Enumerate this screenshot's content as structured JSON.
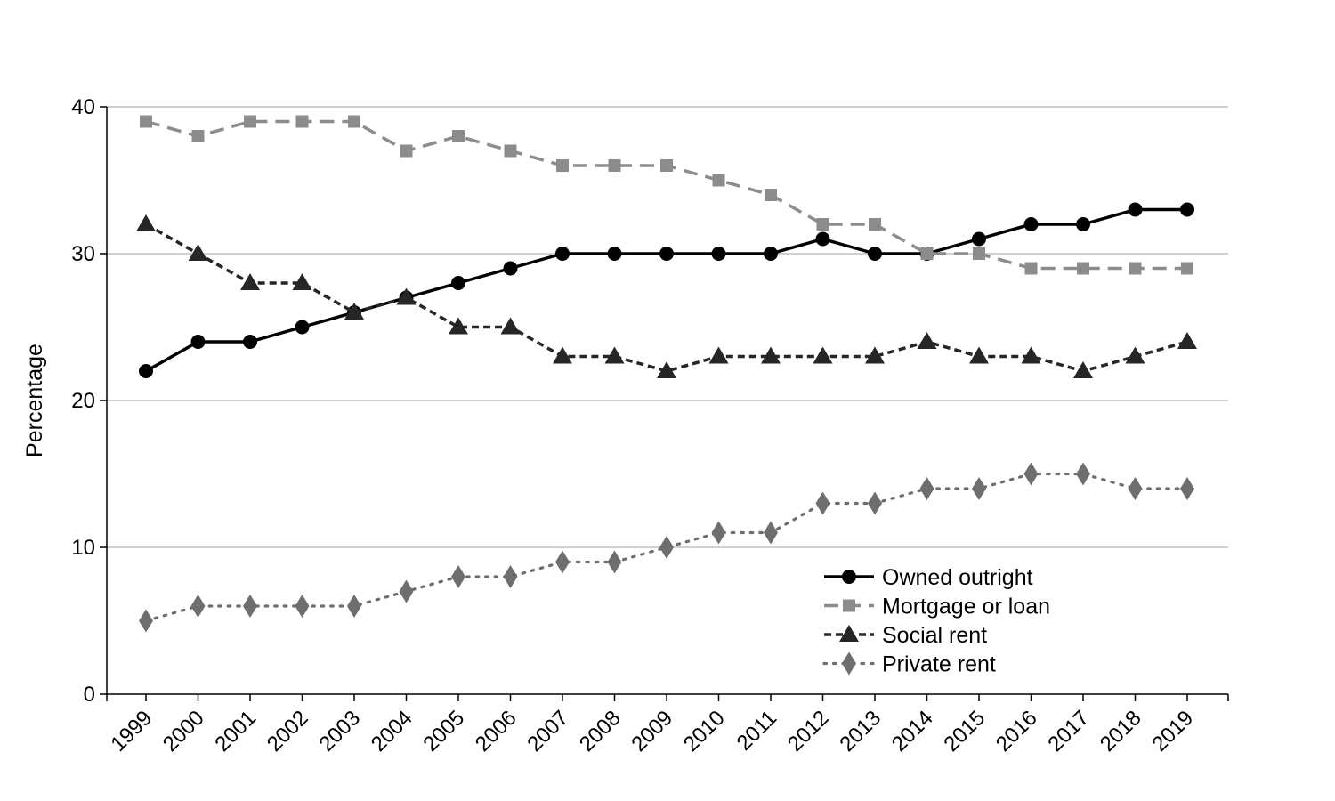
{
  "chart_data": {
    "type": "line",
    "title": "",
    "xlabel": "",
    "ylabel": "Percentage",
    "ylim": [
      0,
      40
    ],
    "yticks": [
      0,
      10,
      20,
      30,
      40
    ],
    "grid": "horizontal",
    "legend_position": "bottom-right",
    "x": [
      "1999",
      "2000",
      "2001",
      "2002",
      "2003",
      "2004",
      "2005",
      "2006",
      "2007",
      "2008",
      "2009",
      "2010",
      "2011",
      "2012",
      "2013",
      "2014",
      "2015",
      "2016",
      "2017",
      "2018",
      "2019"
    ],
    "series": [
      {
        "name": "Owned outright",
        "marker": "circle",
        "line_style": "solid",
        "color": "#000000",
        "values": [
          22,
          24,
          24,
          25,
          26,
          27,
          28,
          29,
          30,
          30,
          30,
          30,
          30,
          31,
          30,
          30,
          31,
          32,
          32,
          33,
          33
        ]
      },
      {
        "name": "Mortgage or loan",
        "marker": "square",
        "line_style": "dashed",
        "color": "#8c8c8c",
        "values": [
          39,
          38,
          39,
          39,
          39,
          37,
          38,
          37,
          36,
          36,
          36,
          35,
          34,
          32,
          32,
          30,
          30,
          29,
          29,
          29,
          29
        ]
      },
      {
        "name": "Social rent",
        "marker": "triangle",
        "line_style": "short-dashed",
        "color": "#262626",
        "values": [
          32,
          30,
          28,
          28,
          26,
          27,
          25,
          25,
          23,
          23,
          22,
          23,
          23,
          23,
          23,
          24,
          23,
          23,
          22,
          23,
          24
        ]
      },
      {
        "name": "Private rent",
        "marker": "diamond",
        "line_style": "dotted",
        "color": "#6e6e6e",
        "values": [
          5,
          6,
          6,
          6,
          6,
          7,
          8,
          8,
          9,
          9,
          10,
          11,
          11,
          13,
          13,
          14,
          14,
          15,
          15,
          14,
          14
        ]
      }
    ]
  }
}
